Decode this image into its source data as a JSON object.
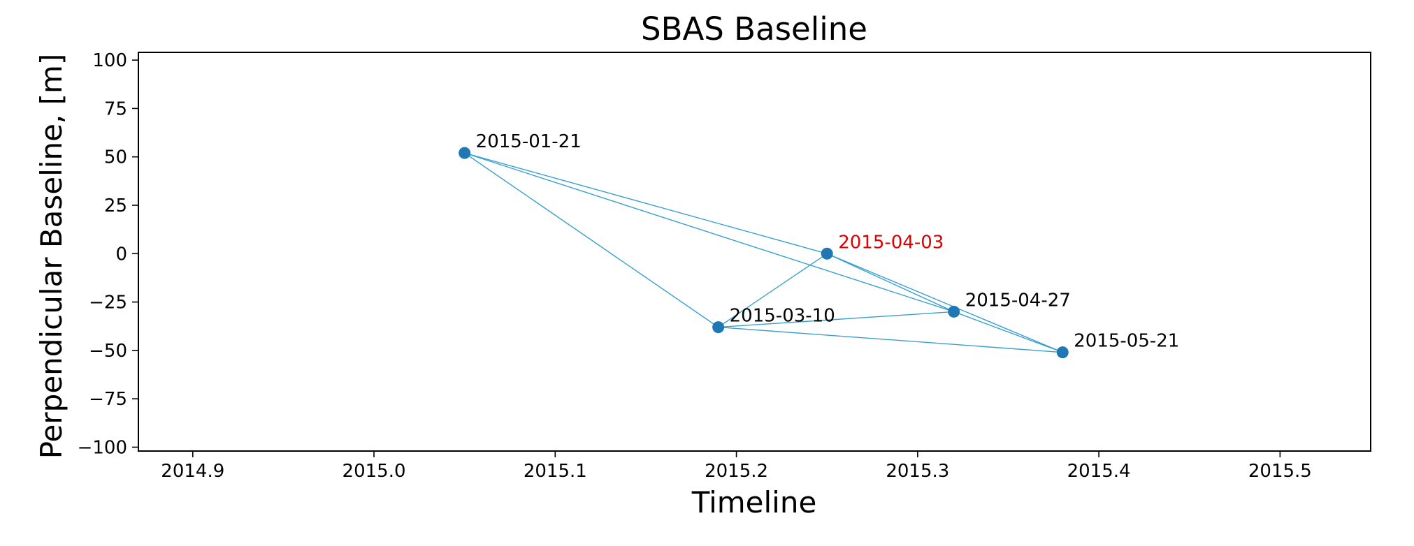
{
  "chart_data": {
    "type": "scatter",
    "title": "SBAS Baseline",
    "xlabel": "Timeline",
    "ylabel": "Perpendicular Baseline, [m]",
    "xlim": [
      2014.87,
      2015.55
    ],
    "ylim": [
      -102,
      104
    ],
    "xticks": [
      2014.9,
      2015.0,
      2015.1,
      2015.2,
      2015.3,
      2015.4,
      2015.5
    ],
    "xtick_labels": [
      "2014.9",
      "2015.0",
      "2015.1",
      "2015.2",
      "2015.3",
      "2015.4",
      "2015.5"
    ],
    "yticks": [
      100,
      75,
      50,
      25,
      0,
      -25,
      -50,
      -75,
      -100
    ],
    "ytick_labels": [
      "100",
      "75",
      "50",
      "25",
      "0",
      "−25",
      "−50",
      "−75",
      "−100"
    ],
    "grid": false,
    "colors": {
      "marker": "#1f77b4",
      "edge": "#3a9fd0",
      "label": "#000000",
      "highlight_label": "#dd0000"
    },
    "points": [
      {
        "label": "2015-01-21",
        "x": 2015.05,
        "y": 52,
        "highlight": false
      },
      {
        "label": "2015-03-10",
        "x": 2015.19,
        "y": -38,
        "highlight": false
      },
      {
        "label": "2015-04-03",
        "x": 2015.25,
        "y": 0,
        "highlight": true
      },
      {
        "label": "2015-04-27",
        "x": 2015.32,
        "y": -30,
        "highlight": false
      },
      {
        "label": "2015-05-21",
        "x": 2015.38,
        "y": -51,
        "highlight": false
      }
    ],
    "pairs": [
      [
        "2015-01-21",
        "2015-03-10"
      ],
      [
        "2015-01-21",
        "2015-04-03"
      ],
      [
        "2015-01-21",
        "2015-04-27"
      ],
      [
        "2015-03-10",
        "2015-04-03"
      ],
      [
        "2015-03-10",
        "2015-04-27"
      ],
      [
        "2015-03-10",
        "2015-05-21"
      ],
      [
        "2015-04-03",
        "2015-04-27"
      ],
      [
        "2015-04-03",
        "2015-05-21"
      ],
      [
        "2015-04-27",
        "2015-05-21"
      ]
    ]
  }
}
